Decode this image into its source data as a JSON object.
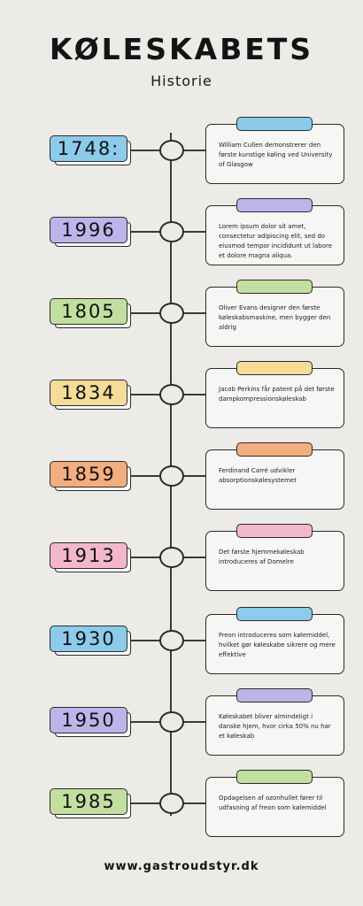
{
  "header": {
    "title": "KØLESKABETS",
    "subtitle": "Historie"
  },
  "events": [
    {
      "year": "1748:",
      "text": "William Cullen demonstrerer den første kunstige køling ved University of Glasgow",
      "color": "#8ccbea"
    },
    {
      "year": "1996",
      "text": "Lorem ipsum dolor sit amet, consectetur adipiscing elit, sed do eiusmod tempor incididunt ut labore et dolore magna aliqua.",
      "color": "#bdb4ea"
    },
    {
      "year": "1805",
      "text": "Oliver Evans designer den første køleskabsmaskine, men bygger den aldrig",
      "color": "#c2df9f"
    },
    {
      "year": "1834",
      "text": "Jacob Perkins får patent på det første dampkompressionskøleskab",
      "color": "#f5dc99"
    },
    {
      "year": "1859",
      "text": "Ferdinand Carré udvikler absorptionskølesystemet",
      "color": "#f3ae80"
    },
    {
      "year": "1913",
      "text": "Det første hjemmekøleskab introduceres af Domelre",
      "color": "#f3b7cd"
    },
    {
      "year": "1930",
      "text": "Freon introduceres som kølemiddel, hvilket gør køleskabe sikrere og mere effektive",
      "color": "#8ccbea"
    },
    {
      "year": "1950",
      "text": "Køleskabet bliver almindeligt i danske hjem, hvor cirka 50% nu har et køleskab",
      "color": "#bdb4ea"
    },
    {
      "year": "1985",
      "text": "Opdagelsen af ozonhullet fører til udfasning af freon som kølemiddel",
      "color": "#c2df9f"
    }
  ],
  "footer": {
    "url": "www.gastroudstyr.dk"
  }
}
